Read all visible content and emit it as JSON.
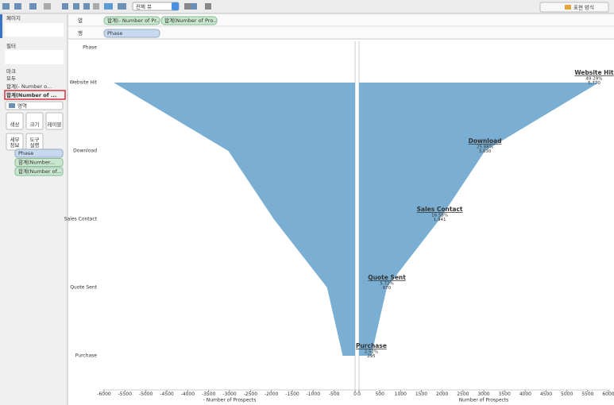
{
  "ui": {
    "toolbar": {
      "view_dropdown": "전체 뷰",
      "show_me": "표현 방식"
    },
    "left_panel": {
      "pages": "페이지",
      "filters": "필터",
      "marks": "마크",
      "marks_all": "모두",
      "marks_items": [
        "합계(- Number o...",
        "합계(Number of ..."
      ],
      "mark_type": "영역",
      "buttons": [
        [
          "색상"
        ],
        [
          "크기"
        ],
        [
          "레이블"
        ],
        [
          "세부",
          "정보"
        ],
        [
          "도구",
          "설명"
        ]
      ],
      "pills": [
        "Phase",
        "합계(Number...",
        "합계(Number of..."
      ]
    },
    "shelves": {
      "columns_label": "열",
      "columns": [
        "합계(- Number of Pr..",
        "합계(Number of Pro.."
      ],
      "rows_label": "행",
      "rows": [
        "Phase"
      ]
    }
  },
  "chart_data": [
    {
      "type": "area",
      "orientation": "horizontal",
      "ytitle": "Phase",
      "categories": [
        "Website Hit",
        "Download",
        "Sales Contact",
        "Quote Sent",
        "Purchase"
      ],
      "series": [
        {
          "name": "- Number of Prospects",
          "color": "#7aaed3",
          "values": [
            -5770,
            -3030,
            -1941,
            -670,
            -295
          ]
        }
      ],
      "xlim": [
        -6000,
        0
      ],
      "xticks": [
        -6000,
        -5500,
        -5000,
        -4500,
        -4000,
        -3500,
        -3000,
        -2500,
        -2000,
        -1500,
        -1000,
        -500,
        0
      ]
    },
    {
      "type": "area",
      "orientation": "horizontal",
      "categories": [
        "Website Hit",
        "Download",
        "Sales Contact",
        "Quote Sent",
        "Purchase"
      ],
      "series": [
        {
          "name": "Number of Prospects",
          "color": "#7aaed3",
          "values": [
            5770,
            3030,
            1941,
            670,
            295
          ],
          "value_labels": [
            "5,770",
            "3,030",
            "1,941",
            "670",
            "295"
          ],
          "shares": [
            49.29,
            25.88,
            16.58,
            5.72,
            2.52
          ],
          "share_labels": [
            "49.29%",
            "25.88%",
            "16.58%",
            "5.72%",
            "2.52%"
          ]
        }
      ],
      "xlim": [
        0,
        6000
      ],
      "xticks": [
        0,
        500,
        1000,
        1500,
        2000,
        2500,
        3000,
        3500,
        4000,
        4500,
        5000,
        5500,
        6000
      ]
    }
  ]
}
